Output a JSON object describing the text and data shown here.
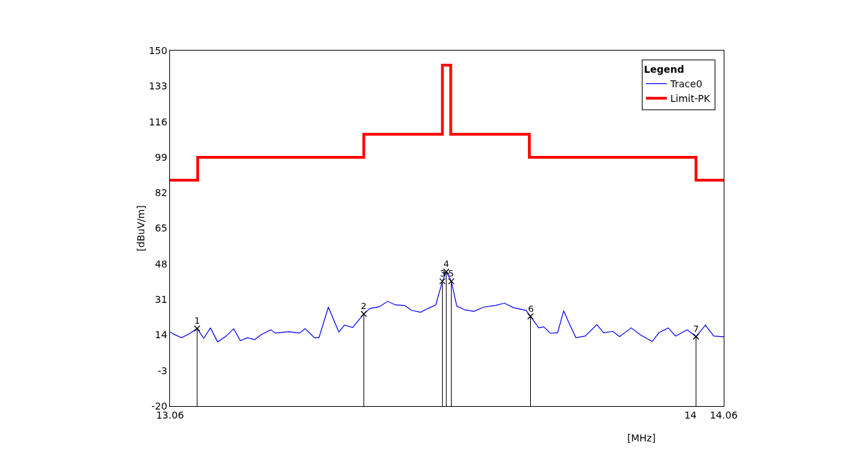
{
  "chart_data": {
    "type": "line",
    "xlabel": "[MHz]",
    "ylabel": "[dBuV/m]",
    "legend_title": "Legend",
    "legend": "top right",
    "xlim": [
      13.06,
      14.06
    ],
    "xticks": [
      13.06,
      14,
      14.06
    ],
    "ylim": [
      -20,
      150
    ],
    "yticks": [
      -20,
      -3,
      14,
      31,
      48,
      65,
      82,
      99,
      116,
      133,
      150
    ],
    "series": [
      {
        "name": "Trace0",
        "color": "#0000ff",
        "x": [
          13.06,
          13.07,
          13.081,
          13.095,
          13.109,
          13.121,
          13.133,
          13.146,
          13.16,
          13.175,
          13.187,
          13.2,
          13.213,
          13.225,
          13.242,
          13.25,
          13.275,
          13.294,
          13.304,
          13.321,
          13.329,
          13.346,
          13.365,
          13.375,
          13.39,
          13.41,
          13.421,
          13.438,
          13.453,
          13.467,
          13.484,
          13.496,
          13.513,
          13.526,
          13.54,
          13.552,
          13.559,
          13.568,
          13.578,
          13.593,
          13.609,
          13.626,
          13.647,
          13.664,
          13.68,
          13.703,
          13.711,
          13.726,
          13.735,
          13.747,
          13.76,
          13.771,
          13.781,
          13.793,
          13.81,
          13.831,
          13.843,
          13.86,
          13.872,
          13.893,
          13.91,
          13.931,
          13.943,
          13.96,
          13.973,
          13.994,
          14.01,
          14.027,
          14.042,
          14.06
        ],
        "values": [
          15.4,
          14.0,
          12.7,
          14.6,
          17.1,
          12.4,
          17.4,
          10.7,
          13.2,
          17.0,
          11.3,
          12.7,
          11.8,
          14.2,
          16.5,
          14.9,
          15.6,
          14.9,
          17.0,
          12.7,
          12.7,
          27.3,
          15.4,
          18.7,
          17.6,
          24.1,
          26.7,
          27.5,
          30.1,
          28.4,
          28.1,
          25.8,
          24.9,
          26.7,
          28.4,
          39.7,
          44.3,
          39.7,
          27.8,
          26.0,
          25.3,
          27.3,
          28.1,
          29.2,
          27.1,
          25.8,
          22.9,
          17.4,
          17.9,
          14.8,
          15.1,
          25.6,
          19.5,
          12.7,
          13.5,
          19.0,
          15.1,
          15.7,
          13.2,
          17.4,
          14.0,
          10.9,
          15.1,
          17.4,
          13.5,
          16.5,
          13.2,
          18.7,
          13.5,
          13.2
        ]
      },
      {
        "name": "Limit-PK",
        "color": "#ff0000",
        "type": "step",
        "x": [
          13.06,
          13.11,
          13.41,
          13.552,
          13.567,
          13.709,
          14.01,
          14.06
        ],
        "values": [
          88,
          99,
          110,
          143,
          110,
          99,
          88,
          88
        ]
      }
    ],
    "annotations": [
      {
        "text": "1",
        "x": 13.109,
        "y": 17.1
      },
      {
        "text": "2",
        "x": 13.41,
        "y": 24.1
      },
      {
        "text": "3",
        "x": 13.552,
        "y": 39.7
      },
      {
        "text": "4",
        "x": 13.559,
        "y": 44.3
      },
      {
        "text": "5",
        "x": 13.568,
        "y": 39.7
      },
      {
        "text": "6",
        "x": 13.711,
        "y": 22.9
      },
      {
        "text": "7",
        "x": 14.01,
        "y": 13.2
      }
    ]
  }
}
